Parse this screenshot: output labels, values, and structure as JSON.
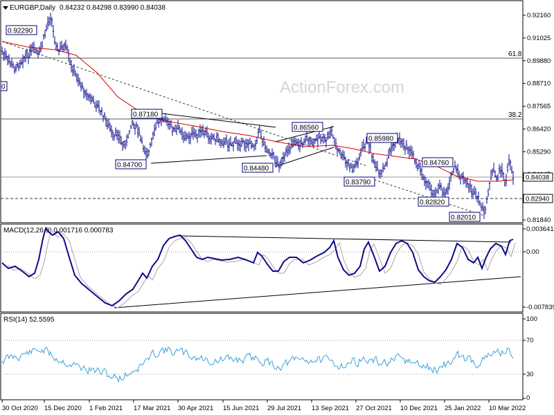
{
  "title": "EURGBP,Daily",
  "ohlc": "0.84232 0.84298 0.83990 0.84038",
  "watermark": "ActionForex.com",
  "colors": {
    "price": "#0a0a8a",
    "ma": "#d40000",
    "signal": "#b0a0a0",
    "grid": "#000000",
    "hline": "#555555",
    "box": "#00007a"
  },
  "price_axis": {
    "ticks": [
      "0.92160",
      "0.91025",
      "0.89880",
      "0.88710",
      "0.87565",
      "0.86420",
      "0.85290",
      "0.84145",
      "0.83005",
      "0.81840"
    ],
    "current": "0.84038",
    "support": "0.82940"
  },
  "fib": [
    {
      "label": "61.8"
    },
    {
      "label": "38.2"
    }
  ],
  "callouts": [
    {
      "text": "0.92290"
    },
    {
      "text": "0.87180"
    },
    {
      "text": "0.84700"
    },
    {
      "text": "0.86560"
    },
    {
      "text": "0.84480"
    },
    {
      "text": "0.85980"
    },
    {
      "text": "0.83790"
    },
    {
      "text": "0.84760"
    },
    {
      "text": "0.82820"
    },
    {
      "text": "0.82010"
    }
  ],
  "left_edge_label": "0",
  "macd": {
    "title": "MACD(12,26,9) 0.001716 0.000783",
    "ticks": [
      "0.003641",
      "0.00",
      "-0.007839"
    ]
  },
  "rsi": {
    "title": "RSI(14) 52.5595",
    "ticks": [
      "100",
      "70",
      "30",
      "0"
    ]
  },
  "dates": [
    "30 Oct 2020",
    "15 Dec 2020",
    "1 Feb 2021",
    "17 Mar 2021",
    "30 Apr 2021",
    "15 Jun 2021",
    "29 Jul 2021",
    "13 Sep 2021",
    "27 Oct 2021",
    "10 Dec 2021",
    "25 Jan 2022",
    "10 Mar 2022"
  ],
  "chart_data": {
    "type": "line",
    "title": "EURGBP,Daily",
    "x": [
      "30 Oct 2020",
      "15 Dec 2020",
      "1 Feb 2021",
      "17 Mar 2021",
      "30 Apr 2021",
      "15 Jun 2021",
      "29 Jul 2021",
      "13 Sep 2021",
      "27 Oct 2021",
      "10 Dec 2021",
      "25 Jan 2022",
      "10 Mar 2022"
    ],
    "series": [
      {
        "values": [
          0.905,
          0.913,
          0.885,
          0.862,
          0.857,
          0.856,
          0.852,
          0.861,
          0.845,
          0.843,
          0.834,
          0.84
        ]
      }
    ],
    "ylim": [
      0.8135,
      0.927
    ],
    "key_levels": [
      0.9229,
      0.8718,
      0.847,
      0.8656,
      0.8448,
      0.8598,
      0.8379,
      0.8476,
      0.8282,
      0.8201,
      0.84038,
      0.8294
    ],
    "macd": {
      "ylim": [
        -0.0085,
        0.0045
      ],
      "last": [
        0.001716,
        0.000783
      ]
    },
    "rsi": {
      "ylim": [
        0,
        100
      ],
      "levels": [
        70,
        30
      ],
      "last": 52.5595
    }
  }
}
